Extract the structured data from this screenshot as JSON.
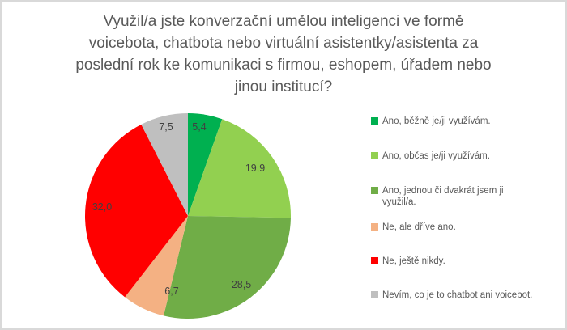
{
  "chart_data": {
    "type": "pie",
    "title": "Využil/a jste konverzační umělou inteligenci ve formě\nvoicebota, chatbota nebo virtuální asistentky/asistenta za\nposlední rok ke komunikaci s firmou, eshopem, úřadem nebo\njinou institucí?",
    "title_color": "#595959",
    "data_label_color": "#404040",
    "legend_text_color": "#595959",
    "legend_position": "right",
    "units": "percent",
    "total": 100.0,
    "series": [
      {
        "label": "Ano, běžně je/ji využívám.",
        "value": 5.4,
        "value_label": "5,4",
        "color": "#00B050"
      },
      {
        "label": "Ano, občas je/ji využívám.",
        "value": 19.9,
        "value_label": "19,9",
        "color": "#92D050"
      },
      {
        "label": "Ano, jednou či dvakrát jsem ji\nvyužil/a.",
        "value": 28.5,
        "value_label": "28,5",
        "color": "#70AD47"
      },
      {
        "label": "Ne, ale dříve ano.",
        "value": 6.7,
        "value_label": "6,7",
        "color": "#F4B183"
      },
      {
        "label": "Ne, ještě nikdy.",
        "value": 32.0,
        "value_label": "32,0",
        "color": "#FF0000"
      },
      {
        "label": "Nevím, co je to chatbot ani voicebot.",
        "value": 7.5,
        "value_label": "7,5",
        "color": "#BFBFBF"
      }
    ]
  }
}
